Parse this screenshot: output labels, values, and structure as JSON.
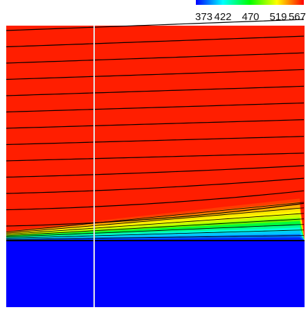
{
  "chart_data": {
    "type": "heatmap",
    "title": "",
    "xlabel": "",
    "ylabel": "",
    "colorbar": {
      "ticks": [
        "373",
        "422",
        "470",
        "519",
        "567"
      ],
      "colormap": [
        "#0000ff",
        "#00ffff",
        "#00ff00",
        "#ffff00",
        "#ff0000"
      ],
      "range": [
        373,
        567
      ]
    },
    "field": {
      "hot_region_value": 567,
      "cold_region_value": 373,
      "hot_color": "#ff1e00",
      "cold_color": "#0000ff"
    },
    "streamlines": true,
    "divider_line": true
  }
}
